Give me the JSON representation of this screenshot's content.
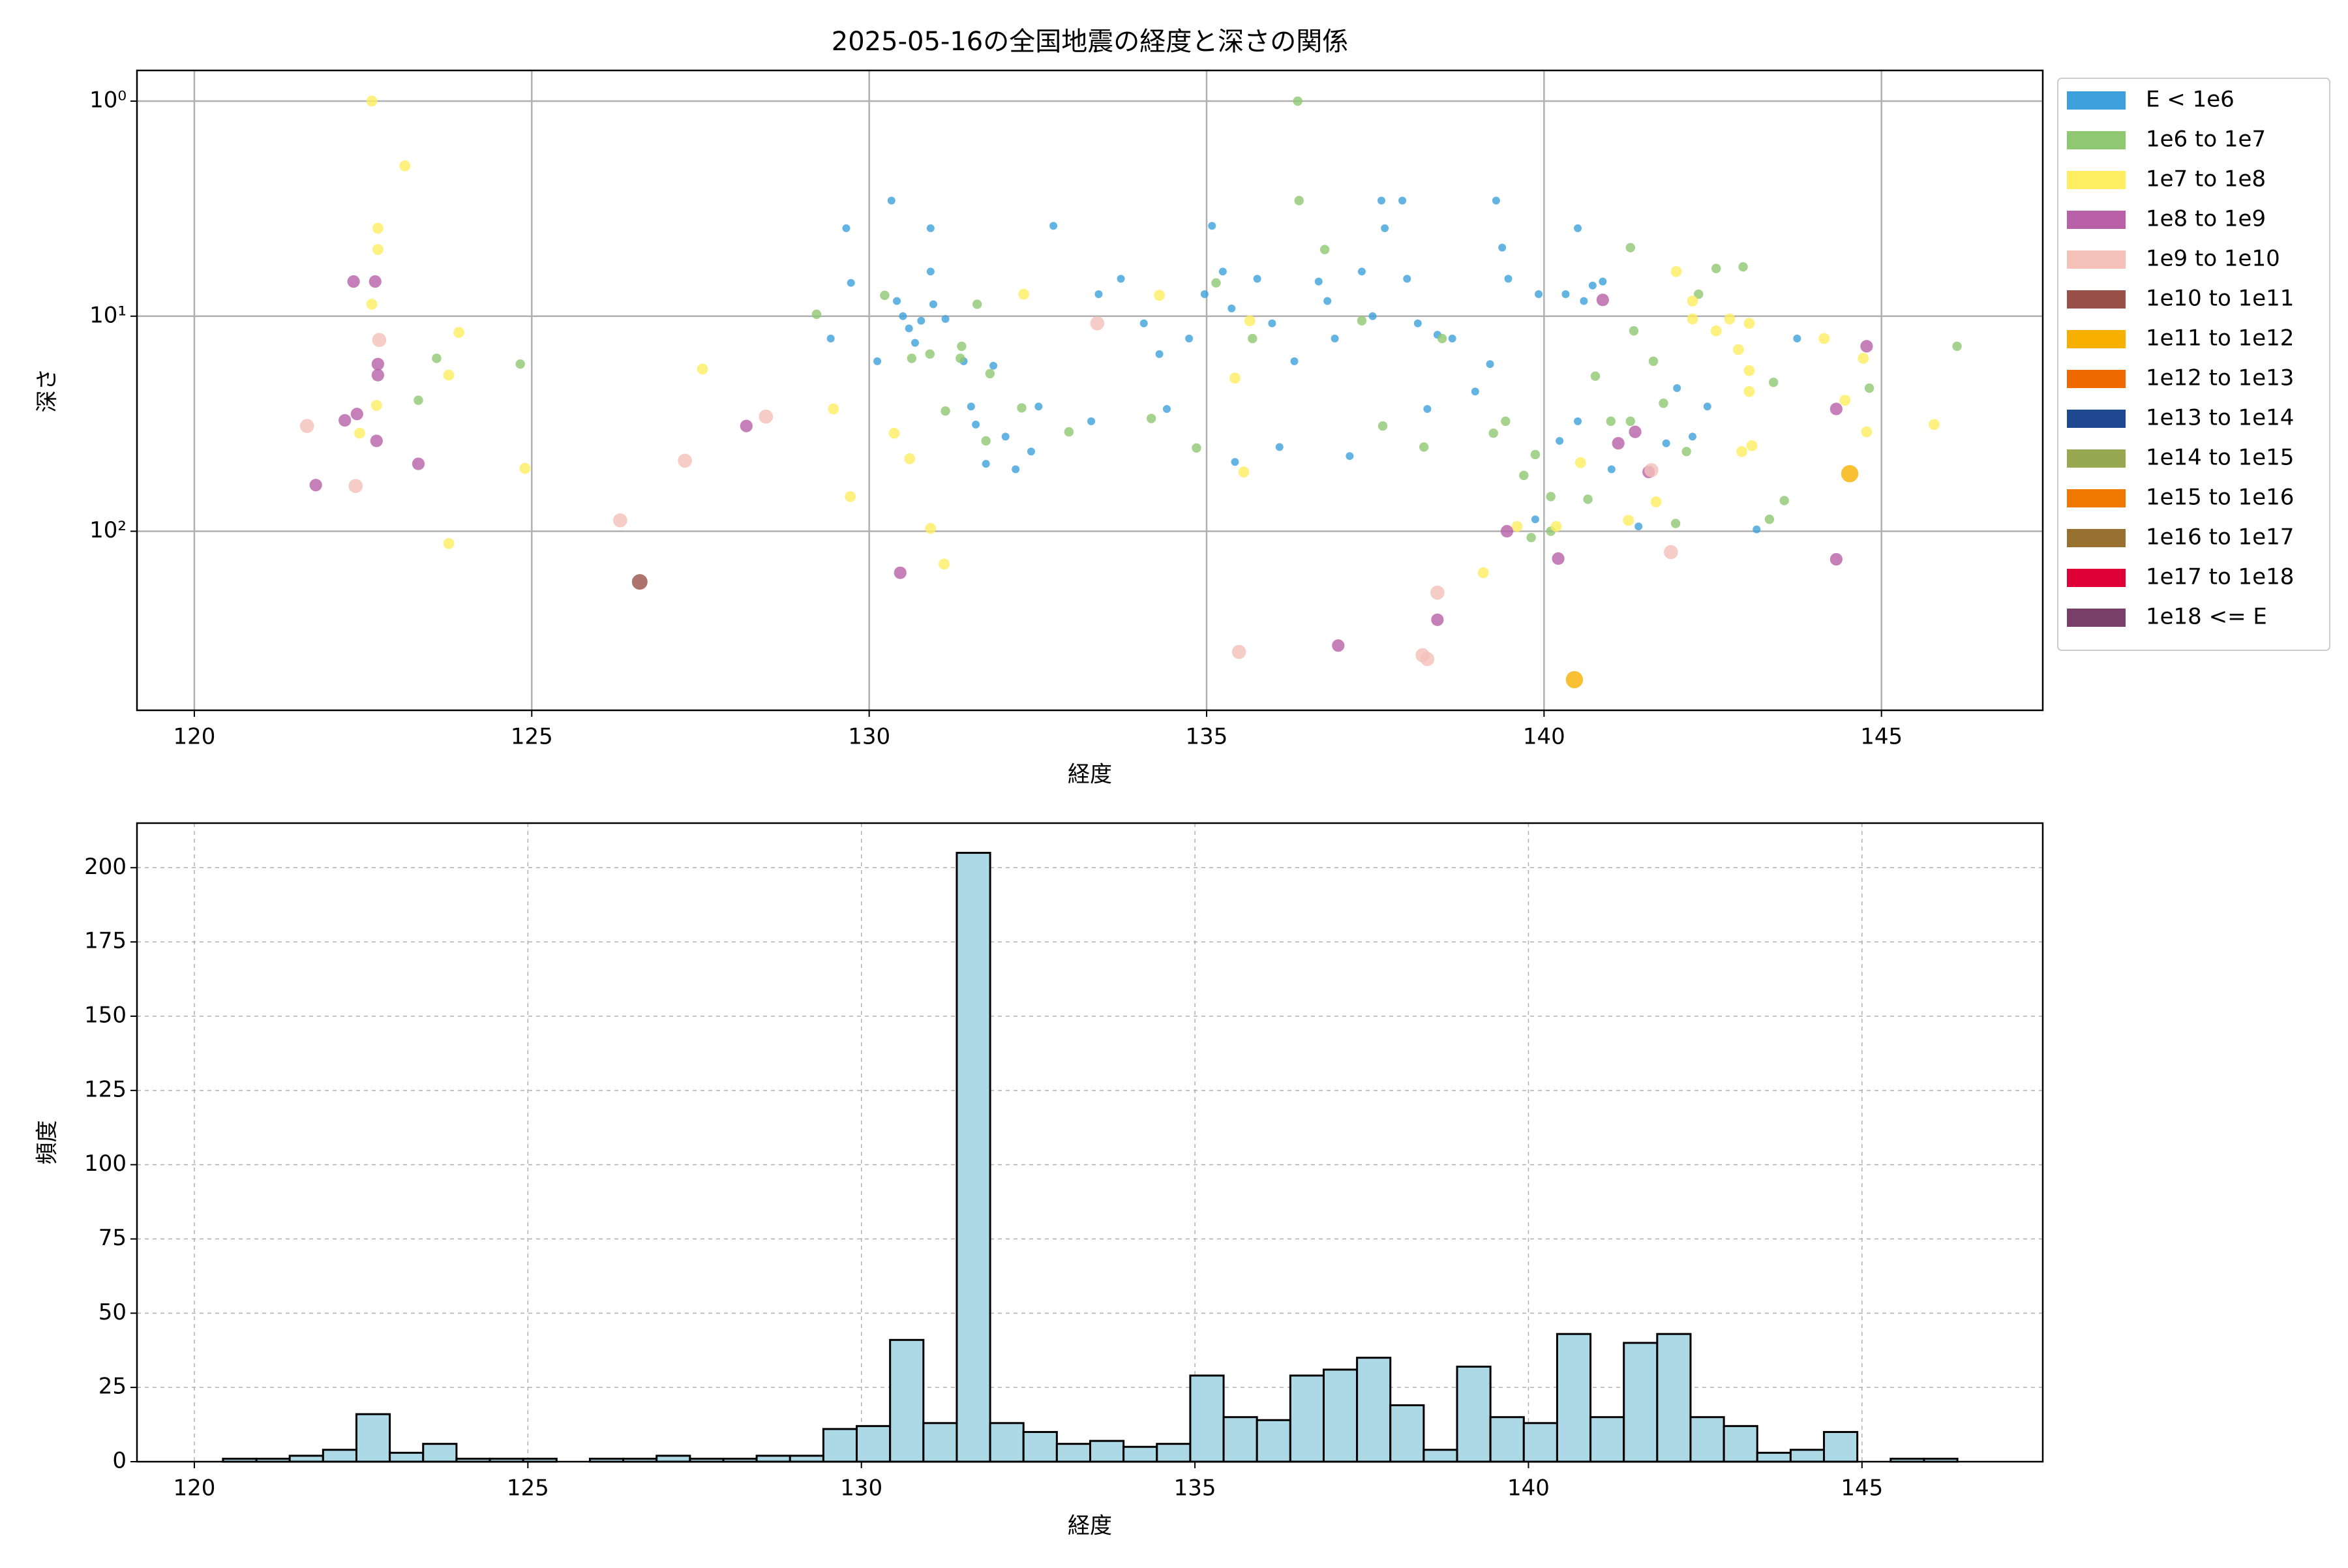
{
  "chart_data": [
    {
      "type": "scatter",
      "title": "2025-05-16の全国地震の経度と深さの関係",
      "x_label": "経度",
      "y_label": "深さ",
      "xlim": [
        119.15,
        147.39
      ],
      "xticks": [
        120,
        125,
        130,
        135,
        140,
        145
      ],
      "ylim": [
        0.72,
        680
      ],
      "y_log": true,
      "y_inverted": true,
      "yticks": [
        {
          "value": 1,
          "label": "10⁰"
        },
        {
          "value": 10,
          "label": "10¹"
        },
        {
          "value": 100,
          "label": "10²"
        }
      ],
      "grid": true,
      "legend": "outside right",
      "series": [
        {
          "name": "E < 1e6",
          "color": "#3ca0dc",
          "x": [
            129.66,
            130.33,
            129.73,
            129.43,
            130.12,
            130.41,
            130.5,
            130.59,
            130.68,
            130.77,
            130.91,
            130.91,
            130.95,
            131.13,
            131.4,
            131.51,
            131.58,
            131.73,
            131.84,
            132.02,
            132.17,
            132.4,
            132.51,
            132.73,
            133.29,
            133.4,
            133.73,
            134.07,
            134.3,
            134.41,
            134.74,
            134.97,
            135.08,
            135.24,
            135.37,
            135.42,
            135.75,
            135.97,
            136.08,
            136.3,
            136.66,
            136.79,
            136.9,
            137.12,
            137.3,
            137.46,
            137.59,
            137.64,
            137.9,
            137.97,
            138.13,
            138.27,
            138.42,
            138.64,
            138.98,
            139.2,
            139.29,
            139.38,
            139.47,
            139.92,
            140.32,
            140.5,
            140.59,
            140.72,
            140.87,
            140.23,
            140.5,
            141.0,
            141.4,
            141.81,
            141.97,
            142.2,
            142.42,
            143.15,
            143.75,
            139.87
          ],
          "y": [
            3.9,
            2.9,
            7,
            12.7,
            16.2,
            8.5,
            10,
            11.4,
            13.3,
            10.5,
            3.9,
            6.2,
            8.8,
            10.3,
            16.2,
            26.3,
            31.9,
            48.6,
            17,
            36.3,
            51.5,
            42.6,
            26.3,
            3.8,
            30.8,
            7.9,
            6.7,
            10.8,
            15,
            27,
            12.7,
            7.9,
            3.8,
            6.2,
            9.2,
            47.6,
            6.7,
            10.8,
            40.6,
            16.2,
            6.9,
            8.5,
            12.7,
            44.7,
            6.2,
            10,
            2.9,
            3.9,
            2.9,
            6.7,
            10.8,
            27,
            12.2,
            12.7,
            22.4,
            16.7,
            2.9,
            4.8,
            6.7,
            7.9,
            7.9,
            3.9,
            8.5,
            7.2,
            6.9,
            38,
            30.8,
            51.5,
            95,
            39,
            21.6,
            36.3,
            26.3,
            98,
            12.7,
            88
          ]
        },
        {
          "name": "1e6 to 1e7",
          "color": "#8fc870",
          "x": [
            123.59,
            123.32,
            124.83,
            129.22,
            130.23,
            130.63,
            130.9,
            131.37,
            131.6,
            131.13,
            131.73,
            131.35,
            132.26,
            131.79,
            132.96,
            134.18,
            134.85,
            135.14,
            135.68,
            136.35,
            136.37,
            136.75,
            137.3,
            137.61,
            138.22,
            138.49,
            139.25,
            139.7,
            139.87,
            140.1,
            140.76,
            141.28,
            141.33,
            141.62,
            141.77,
            141.95,
            142.11,
            142.29,
            142.55,
            142.95,
            143.4,
            143.56,
            143.34,
            144.82,
            146.12,
            140.65,
            140.1,
            139.81,
            139.43,
            140.99,
            141.28
          ],
          "y": [
            15.7,
            24.6,
            16.7,
            9.8,
            8,
            15.7,
            15,
            13.8,
            8.8,
            27.6,
            38,
            15.7,
            26.7,
            18.5,
            34.5,
            29.9,
            41,
            7,
            12.7,
            1,
            2.9,
            4.9,
            10.5,
            32.4,
            40.6,
            12.7,
            35,
            55,
            44,
            69,
            19,
            4.8,
            11.7,
            16.2,
            25.4,
            92,
            42.6,
            7.9,
            6,
            5.9,
            20.3,
            72,
            88,
            21.6,
            13.8,
            71,
            100,
            107,
            30.8,
            30.8,
            30.8
          ]
        },
        {
          "name": "1e7 to 1e8",
          "color": "#ffee60",
          "x": [
            122.63,
            123.12,
            122.72,
            122.72,
            122.63,
            122.7,
            122.45,
            123.92,
            123.77,
            123.77,
            124.9,
            127.53,
            129.47,
            129.72,
            130.37,
            130.6,
            130.91,
            131.11,
            132.29,
            134.3,
            135.64,
            135.42,
            135.55,
            141.96,
            142.2,
            142.55,
            142.88,
            143.04,
            143.04,
            143.08,
            142.93,
            144.15,
            144.46,
            144.73,
            145.78,
            144.78,
            139.1,
            139.6,
            140.18,
            140.54,
            141.25,
            141.66,
            142.2,
            142.75,
            143.04
          ],
          "y": [
            1,
            2.0,
            3.9,
            4.9,
            8.8,
            26,
            35,
            11.9,
            18.8,
            114,
            51,
            17.6,
            27,
            69,
            35,
            46,
            97,
            142,
            7.9,
            8,
            10.5,
            19.4,
            53,
            6.2,
            10.3,
            11.7,
            14.3,
            17.9,
            22.4,
            40,
            42.6,
            12.7,
            24.6,
            15.7,
            31.9,
            34.5,
            156,
            95,
            95,
            48,
            89,
            73,
            8.5,
            10.3,
            10.8
          ]
        },
        {
          "name": "1e8 to 1e9",
          "color": "#b860a8",
          "x": [
            122.36,
            122.68,
            122.72,
            122.72,
            122.23,
            122.41,
            122.7,
            121.8,
            123.32,
            128.18,
            130.46,
            139.45,
            140.21,
            141.1,
            141.35,
            140.87,
            144.78,
            144.33,
            144.33,
            136.95,
            138.42,
            141.55
          ],
          "y": [
            6.9,
            6.9,
            16.7,
            18.8,
            30.5,
            28.5,
            38,
            61,
            48.6,
            32.4,
            156,
            100,
            134,
            39,
            34.5,
            8.4,
            13.8,
            27,
            135,
            340,
            258,
            53
          ]
        },
        {
          "name": "1e9 to 1e10",
          "color": "#f4c0b8",
          "x": [
            121.67,
            122.39,
            122.74,
            127.27,
            128.47,
            126.31,
            133.38,
            135.48,
            138.2,
            138.27,
            138.42,
            141.88,
            141.59
          ],
          "y": [
            32.4,
            61.6,
            12.9,
            47,
            29.3,
            89,
            10.8,
            364,
            377,
            393,
            193,
            125,
            52
          ]
        },
        {
          "name": "1e10 to 1e11",
          "color": "#985048",
          "x": [
            126.6
          ],
          "y": [
            172
          ]
        },
        {
          "name": "1e11 to 1e12",
          "color": "#f8b000",
          "x": [
            140.45,
            144.53
          ],
          "y": [
            490,
            54
          ]
        },
        {
          "name": "1e12 to 1e13",
          "color": "#f06800",
          "x": [],
          "y": []
        },
        {
          "name": "1e13 to 1e14",
          "color": "#1e4890",
          "x": [],
          "y": []
        },
        {
          "name": "1e14 to 1e15",
          "color": "#98a850",
          "x": [],
          "y": []
        },
        {
          "name": "1e15 to 1e16",
          "color": "#f07800",
          "x": [],
          "y": []
        },
        {
          "name": "1e16 to 1e17",
          "color": "#987030",
          "x": [],
          "y": []
        },
        {
          "name": "1e17 to 1e18",
          "color": "#e00038",
          "x": [],
          "y": []
        },
        {
          "name": "1e18 <= E",
          "color": "#784068",
          "x": [],
          "y": []
        }
      ]
    },
    {
      "type": "histogram",
      "x_label": "経度",
      "y_label": "頻度",
      "color": "#add8e6",
      "edge_color": "#000000",
      "xlim": [
        119.14,
        147.71
      ],
      "xticks": [
        120,
        125,
        130,
        135,
        140,
        145
      ],
      "ylim": [
        0,
        215
      ],
      "yticks": [
        0,
        25,
        50,
        75,
        100,
        125,
        150,
        175,
        200
      ],
      "grid": true,
      "grid_style": "dashed",
      "bins": [
        120.43,
        120.93,
        121.43,
        121.93,
        122.43,
        122.93,
        123.43,
        123.93,
        124.43,
        124.93,
        125.43,
        125.93,
        126.43,
        126.93,
        127.43,
        127.93,
        128.43,
        128.93,
        129.43,
        129.93,
        130.43,
        130.93,
        131.43,
        131.93,
        132.43,
        132.93,
        133.43,
        133.93,
        134.43,
        134.93,
        135.43,
        135.93,
        136.43,
        136.93,
        137.43,
        137.93,
        138.43,
        138.93,
        139.43,
        139.93,
        140.43,
        140.93,
        141.43,
        141.93,
        142.43,
        142.93,
        143.43,
        143.93,
        144.43,
        144.93,
        145.43,
        145.93,
        146.43
      ],
      "values": [
        1,
        1,
        2,
        4,
        16,
        3,
        6,
        1,
        1,
        1,
        0,
        1,
        1,
        2,
        1,
        1,
        2,
        2,
        11,
        12,
        41,
        13,
        205,
        13,
        10,
        6,
        7,
        5,
        6,
        29,
        15,
        14,
        29,
        31,
        35,
        19,
        4,
        32,
        15,
        13,
        43,
        15,
        40,
        43,
        15,
        12,
        3,
        4,
        10,
        0,
        1,
        1
      ]
    }
  ]
}
